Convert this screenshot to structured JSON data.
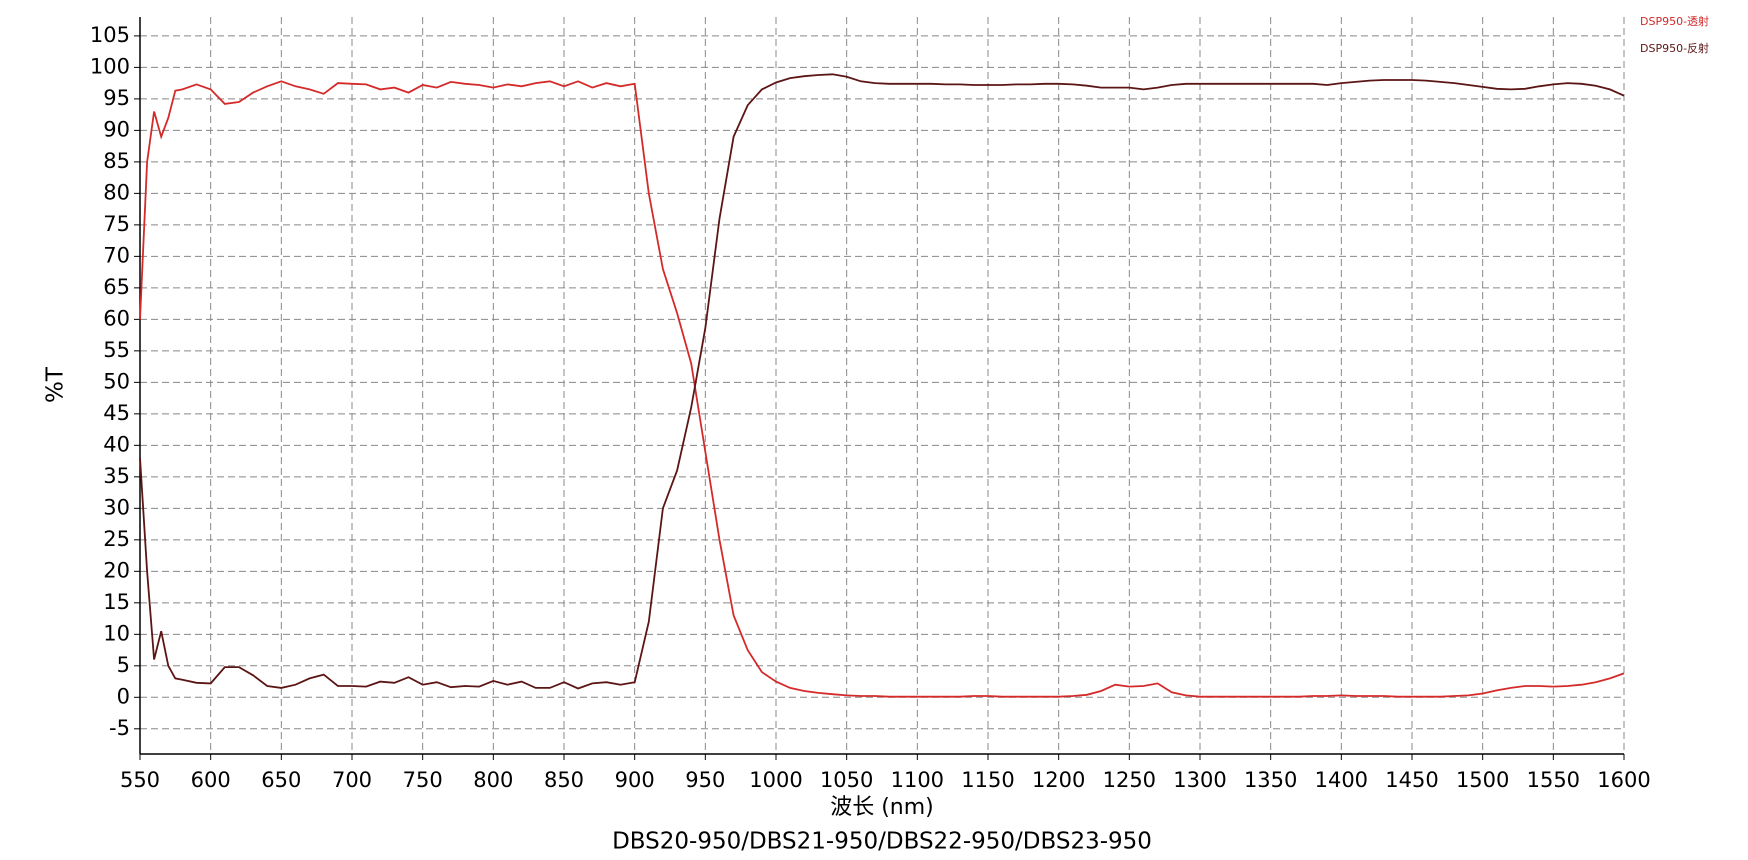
{
  "chart_data": {
    "type": "line",
    "title": "DBS20-950/DBS21-950/DBS22-950/DBS23-950",
    "x_label": "波长 (nm)",
    "y_label": "%T",
    "x": [
      550,
      555,
      560,
      565,
      570,
      575,
      580,
      590,
      600,
      610,
      620,
      630,
      640,
      650,
      660,
      670,
      680,
      690,
      700,
      710,
      720,
      730,
      740,
      750,
      760,
      770,
      780,
      790,
      800,
      810,
      820,
      830,
      840,
      850,
      860,
      870,
      880,
      890,
      900,
      910,
      920,
      930,
      940,
      950,
      960,
      970,
      980,
      990,
      1000,
      1010,
      1020,
      1030,
      1040,
      1050,
      1060,
      1070,
      1080,
      1090,
      1100,
      1110,
      1120,
      1130,
      1140,
      1150,
      1160,
      1170,
      1180,
      1190,
      1200,
      1210,
      1220,
      1230,
      1240,
      1250,
      1260,
      1270,
      1280,
      1290,
      1300,
      1310,
      1320,
      1330,
      1340,
      1350,
      1360,
      1370,
      1380,
      1390,
      1400,
      1410,
      1420,
      1430,
      1440,
      1450,
      1460,
      1470,
      1480,
      1490,
      1500,
      1510,
      1520,
      1530,
      1540,
      1550,
      1560,
      1570,
      1580,
      1590,
      1600
    ],
    "series": [
      {
        "name": "DSP950-透射",
        "color": "#d42a2a",
        "values": [
          60,
          85,
          93,
          89,
          92,
          96.3,
          96.5,
          97.3,
          96.5,
          94.2,
          94.5,
          96,
          97,
          97.8,
          97,
          96.5,
          95.8,
          97.5,
          97.4,
          97.3,
          96.5,
          96.8,
          96,
          97.2,
          96.8,
          97.7,
          97.4,
          97.2,
          96.8,
          97.3,
          97,
          97.5,
          97.8,
          97,
          97.8,
          96.8,
          97.5,
          97,
          97.4,
          80,
          68,
          61,
          53,
          39,
          25,
          13,
          7.5,
          4,
          2.5,
          1.5,
          1,
          0.7,
          0.5,
          0.3,
          0.2,
          0.2,
          0.1,
          0.1,
          0.1,
          0.1,
          0.1,
          0.1,
          0.2,
          0.2,
          0.1,
          0.1,
          0.1,
          0.1,
          0.1,
          0.2,
          0.4,
          1,
          2,
          1.7,
          1.8,
          2.2,
          0.8,
          0.3,
          0.1,
          0.1,
          0.1,
          0.1,
          0.1,
          0.1,
          0.1,
          0.1,
          0.2,
          0.2,
          0.3,
          0.2,
          0.2,
          0.2,
          0.1,
          0.1,
          0.1,
          0.1,
          0.2,
          0.3,
          0.6,
          1.1,
          1.5,
          1.8,
          1.8,
          1.7,
          1.8,
          2,
          2.4,
          3,
          3.8
        ]
      },
      {
        "name": "DSP950-反射",
        "color": "#5c1515",
        "values": [
          38,
          20,
          6,
          10.5,
          5,
          3,
          2.8,
          2.3,
          2.2,
          4.8,
          4.8,
          3.5,
          1.8,
          1.5,
          2,
          3,
          3.6,
          1.8,
          1.8,
          1.7,
          2.5,
          2.3,
          3.2,
          2,
          2.4,
          1.6,
          1.8,
          1.7,
          2.6,
          2,
          2.5,
          1.5,
          1.5,
          2.4,
          1.4,
          2.2,
          2.4,
          2,
          2.4,
          12,
          30,
          36,
          46,
          58.6,
          76,
          89,
          94,
          96.5,
          97.6,
          98.3,
          98.6,
          98.8,
          98.9,
          98.5,
          97.8,
          97.5,
          97.4,
          97.4,
          97.4,
          97.4,
          97.3,
          97.3,
          97.2,
          97.2,
          97.2,
          97.3,
          97.3,
          97.4,
          97.4,
          97.3,
          97.1,
          96.8,
          96.8,
          96.8,
          96.5,
          96.8,
          97.2,
          97.4,
          97.4,
          97.4,
          97.4,
          97.4,
          97.4,
          97.4,
          97.4,
          97.4,
          97.4,
          97.2,
          97.5,
          97.7,
          97.9,
          98,
          98,
          98,
          97.9,
          97.7,
          97.5,
          97.2,
          96.9,
          96.6,
          96.5,
          96.6,
          97,
          97.3,
          97.5,
          97.4,
          97.1,
          96.5,
          95.5
        ]
      }
    ],
    "xlim": [
      550,
      1600
    ],
    "ylim": [
      -9,
      108
    ],
    "xticks": [
      550,
      600,
      650,
      700,
      750,
      800,
      850,
      900,
      950,
      1000,
      1050,
      1100,
      1150,
      1200,
      1250,
      1300,
      1350,
      1400,
      1450,
      1500,
      1550,
      1600
    ],
    "yticks": [
      -5,
      0,
      5,
      10,
      15,
      20,
      25,
      30,
      35,
      40,
      45,
      50,
      55,
      60,
      65,
      70,
      75,
      80,
      85,
      90,
      95,
      100,
      105
    ],
    "grid": true,
    "legend": "top-right"
  }
}
